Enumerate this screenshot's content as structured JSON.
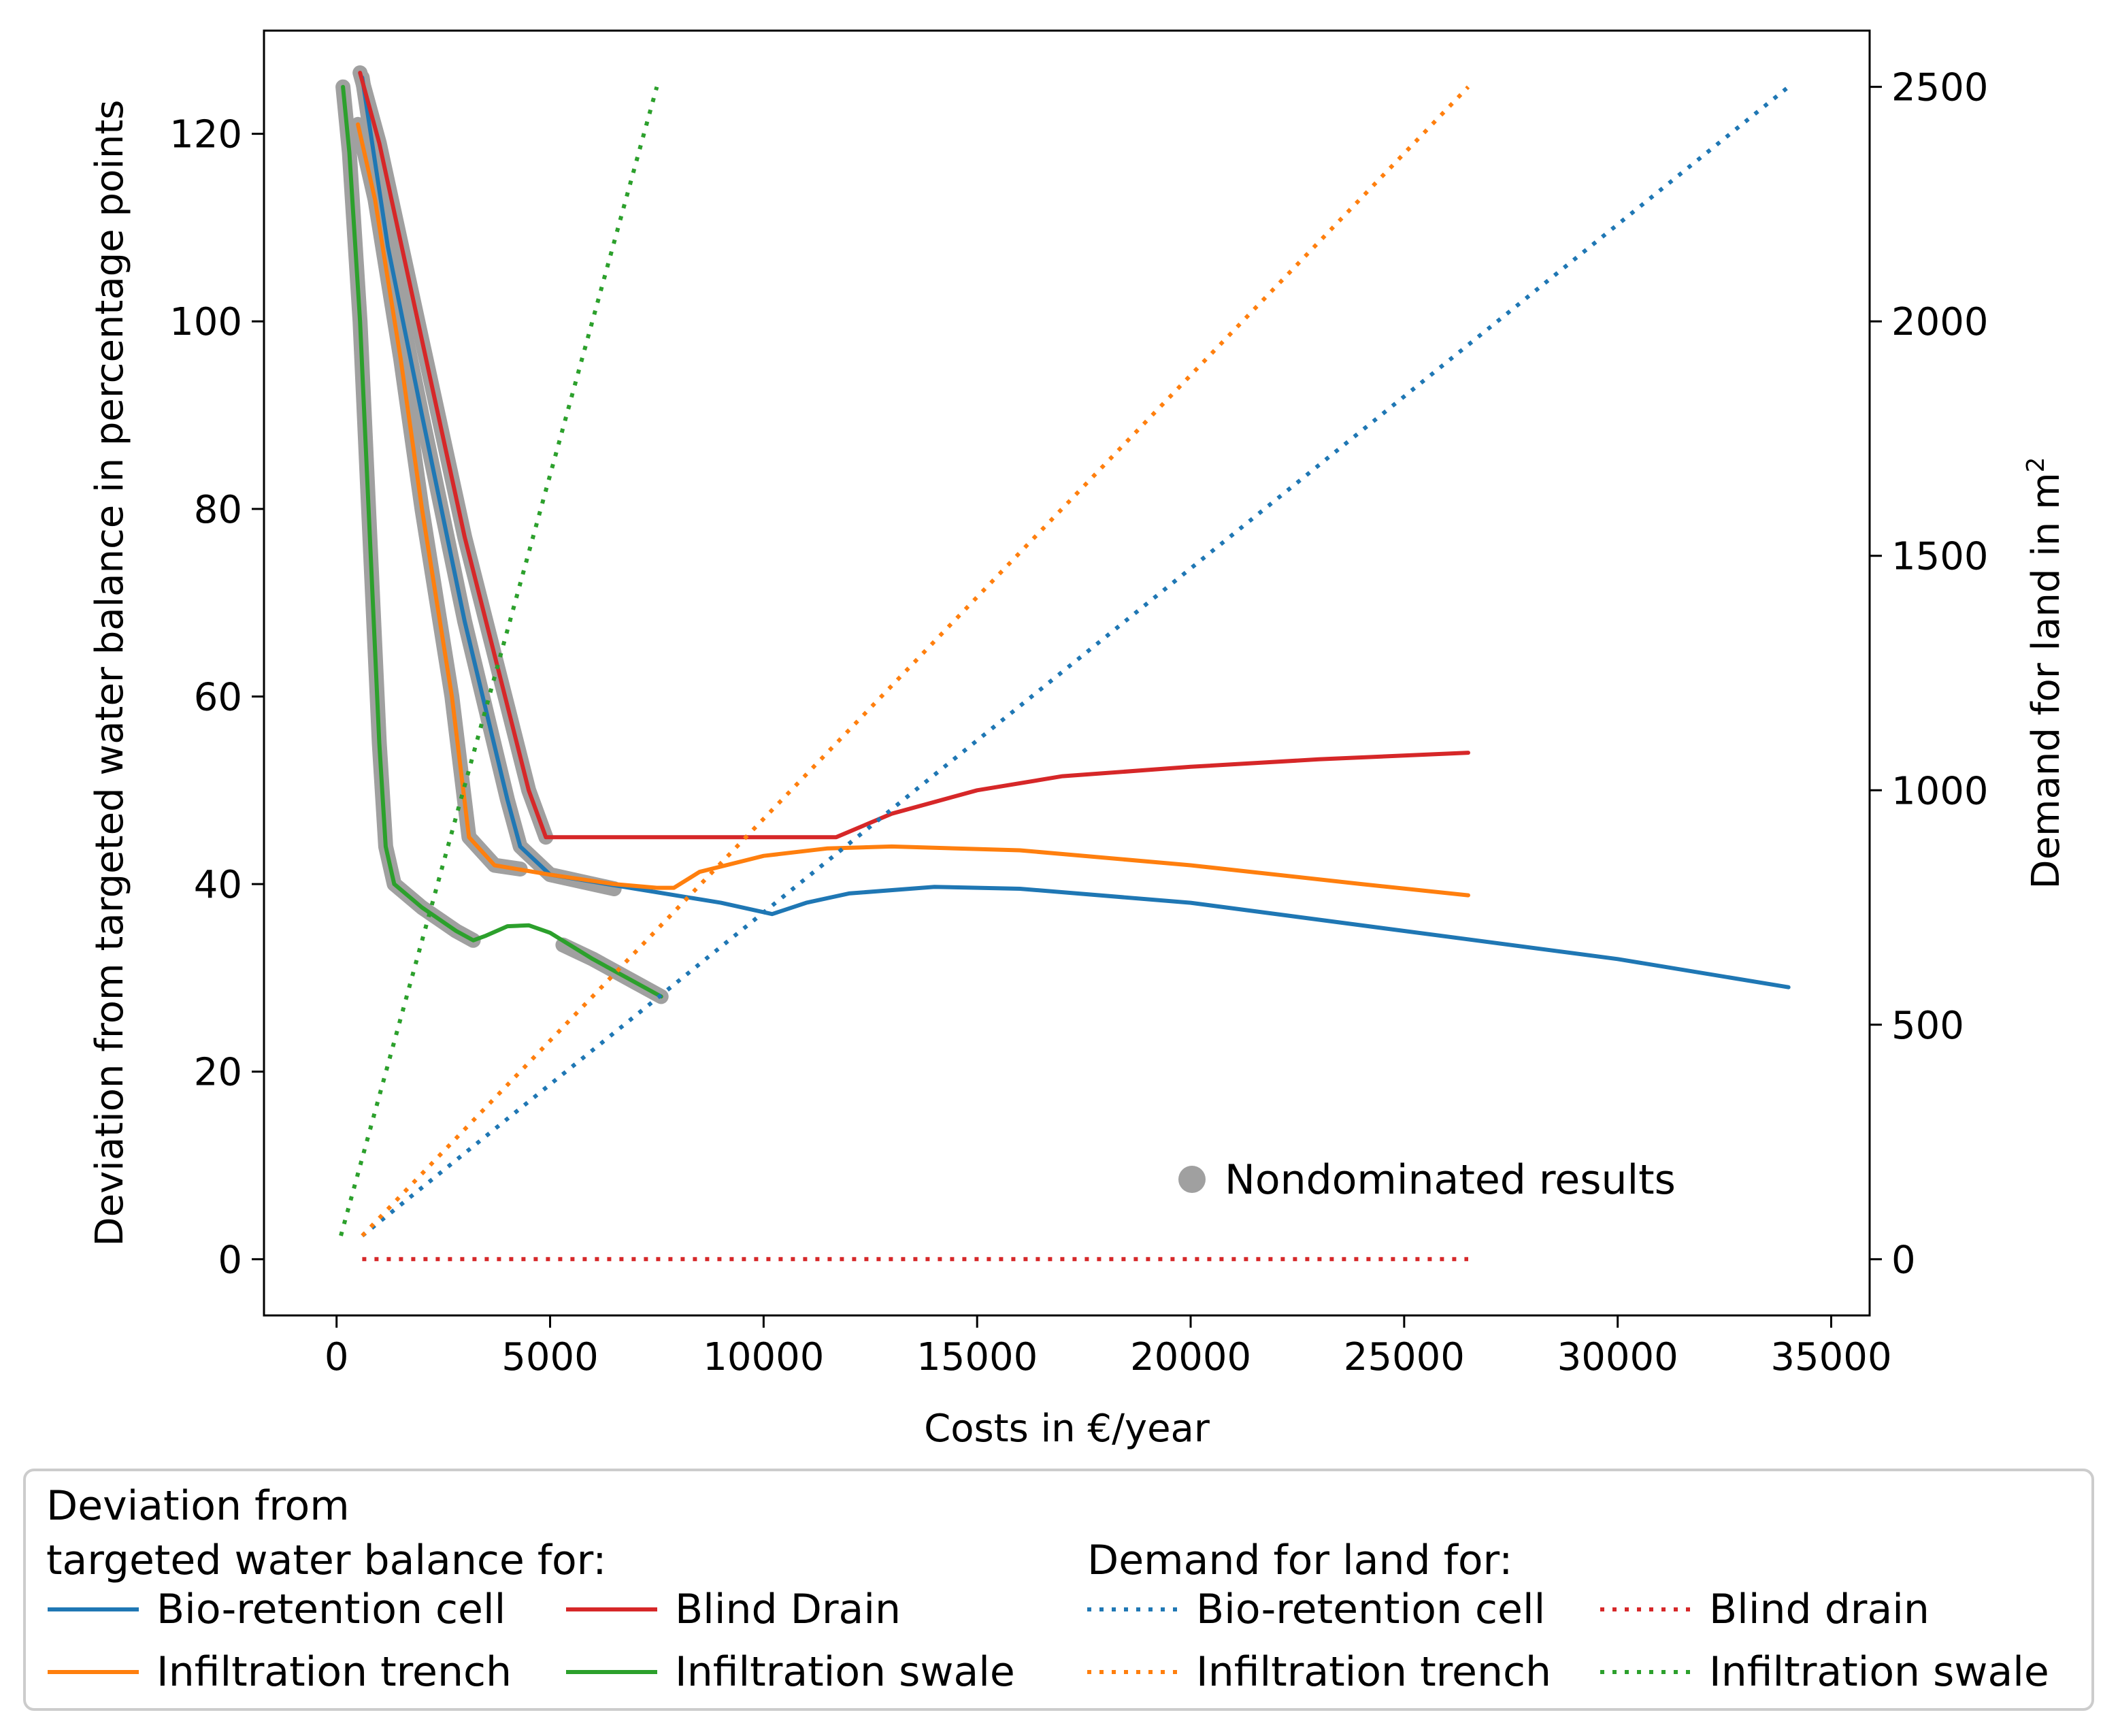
{
  "colors": {
    "bio_retention": "#1f77b4",
    "infiltration_trench": "#ff7f0e",
    "blind_drain": "#d62728",
    "infiltration_swale": "#2ca02c",
    "nondominated": "#a0a0a0"
  },
  "chart_data": {
    "type": "line",
    "xlabel": "Costs in €/year",
    "ylabel_left": "Deviation from targeted water balance in percentage points",
    "ylabel_right": "Demand for land in m",
    "ylabel_right_sup": "2",
    "xlim": [
      -1700,
      35900
    ],
    "ylim_left": [
      -6,
      131
    ],
    "ylim_right": [
      -120,
      2620
    ],
    "x_ticks": [
      0,
      5000,
      10000,
      15000,
      20000,
      25000,
      30000,
      35000
    ],
    "x_tick_labels": [
      "0",
      "5000",
      "10000",
      "15000",
      "20000",
      "25000",
      "30000",
      "35000"
    ],
    "y_left_ticks": [
      0,
      20,
      40,
      60,
      80,
      100,
      120
    ],
    "y_left_tick_labels": [
      "0",
      "20",
      "40",
      "60",
      "80",
      "100",
      "120"
    ],
    "y_right_ticks": [
      0,
      500,
      1000,
      1500,
      2000,
      2500
    ],
    "y_right_tick_labels": [
      "0",
      "500",
      "1000",
      "1500",
      "2000",
      "2500"
    ],
    "nondominated_label": "Nondominated results",
    "series": [
      {
        "name": "Bio-retention cell",
        "axis": "left",
        "style": "solid",
        "color_key": "bio_retention",
        "points": [
          [
            600,
            126
          ],
          [
            1200,
            108
          ],
          [
            2000,
            90
          ],
          [
            3000,
            68
          ],
          [
            4000,
            49
          ],
          [
            4300,
            44
          ],
          [
            5000,
            41
          ],
          [
            7000,
            39.5
          ],
          [
            9000,
            38
          ],
          [
            10000,
            37
          ],
          [
            10200,
            36.8
          ],
          [
            11000,
            38
          ],
          [
            12000,
            39
          ],
          [
            14000,
            39.7
          ],
          [
            16000,
            39.5
          ],
          [
            20000,
            38
          ],
          [
            25000,
            35
          ],
          [
            30000,
            32
          ],
          [
            34000,
            29
          ]
        ]
      },
      {
        "name": "Blind Drain",
        "axis": "left",
        "style": "solid",
        "color_key": "blind_drain",
        "points": [
          [
            550,
            126.5
          ],
          [
            1000,
            119
          ],
          [
            2000,
            98
          ],
          [
            3000,
            77
          ],
          [
            4000,
            59
          ],
          [
            4500,
            50
          ],
          [
            4900,
            45
          ],
          [
            6000,
            45
          ],
          [
            8000,
            45
          ],
          [
            10000,
            45
          ],
          [
            11700,
            45
          ],
          [
            13000,
            47.5
          ],
          [
            15000,
            50
          ],
          [
            17000,
            51.5
          ],
          [
            20000,
            52.5
          ],
          [
            23000,
            53.3
          ],
          [
            26500,
            54
          ]
        ]
      },
      {
        "name": "Infiltration trench",
        "axis": "left",
        "style": "solid",
        "color_key": "infiltration_trench",
        "points": [
          [
            500,
            121
          ],
          [
            900,
            113
          ],
          [
            1500,
            96
          ],
          [
            2000,
            80
          ],
          [
            2700,
            60
          ],
          [
            3100,
            45
          ],
          [
            3700,
            42
          ],
          [
            5000,
            41
          ],
          [
            6500,
            40
          ],
          [
            7500,
            39.6
          ],
          [
            7900,
            39.6
          ],
          [
            8500,
            41.3
          ],
          [
            10000,
            43
          ],
          [
            11500,
            43.8
          ],
          [
            13000,
            44
          ],
          [
            16000,
            43.6
          ],
          [
            20000,
            42
          ],
          [
            24000,
            40
          ],
          [
            26500,
            38.8
          ]
        ]
      },
      {
        "name": "Infiltration swale",
        "axis": "left",
        "style": "solid",
        "color_key": "infiltration_swale",
        "points": [
          [
            150,
            125
          ],
          [
            300,
            118
          ],
          [
            550,
            100
          ],
          [
            800,
            75
          ],
          [
            1000,
            55
          ],
          [
            1150,
            44
          ],
          [
            1350,
            40
          ],
          [
            2000,
            37.5
          ],
          [
            2800,
            35
          ],
          [
            3200,
            34
          ],
          [
            3500,
            34.5
          ],
          [
            4000,
            35.5
          ],
          [
            4500,
            35.6
          ],
          [
            5000,
            34.8
          ],
          [
            6000,
            32
          ],
          [
            7000,
            29.5
          ],
          [
            7600,
            28
          ]
        ]
      },
      {
        "name": "Nondominated bio-retention",
        "axis": "left",
        "style": "nondominated",
        "color_key": "nondominated",
        "points": [
          [
            600,
            126
          ],
          [
            1200,
            108
          ],
          [
            2000,
            90
          ],
          [
            3000,
            68
          ],
          [
            4000,
            49
          ],
          [
            4300,
            44
          ],
          [
            5000,
            41
          ],
          [
            6500,
            39.5
          ]
        ]
      },
      {
        "name": "Nondominated blind drain",
        "axis": "left",
        "style": "nondominated",
        "color_key": "nondominated",
        "points": [
          [
            550,
            126.5
          ],
          [
            1000,
            119
          ],
          [
            2000,
            98
          ],
          [
            3000,
            77
          ],
          [
            4000,
            59
          ],
          [
            4500,
            50
          ],
          [
            4900,
            45
          ]
        ]
      },
      {
        "name": "Nondominated trench",
        "axis": "left",
        "style": "nondominated",
        "color_key": "nondominated",
        "points": [
          [
            500,
            121
          ],
          [
            900,
            113
          ],
          [
            1500,
            96
          ],
          [
            2000,
            80
          ],
          [
            2700,
            60
          ],
          [
            3100,
            45
          ],
          [
            3700,
            42
          ],
          [
            4300,
            41.6
          ]
        ]
      },
      {
        "name": "Nondominated swale 1",
        "axis": "left",
        "style": "nondominated",
        "color_key": "nondominated",
        "points": [
          [
            150,
            125
          ],
          [
            300,
            118
          ],
          [
            550,
            100
          ],
          [
            800,
            75
          ],
          [
            1000,
            55
          ],
          [
            1150,
            44
          ],
          [
            1350,
            40
          ],
          [
            2000,
            37.5
          ],
          [
            2800,
            35
          ],
          [
            3200,
            34
          ]
        ]
      },
      {
        "name": "Nondominated swale 2",
        "axis": "left",
        "style": "nondominated",
        "color_key": "nondominated",
        "points": [
          [
            5300,
            33.5
          ],
          [
            6000,
            32
          ],
          [
            7000,
            29.5
          ],
          [
            7600,
            28
          ]
        ]
      },
      {
        "name": "Bio-retention cell",
        "axis": "right",
        "style": "dotted",
        "color_key": "bio_retention",
        "points": [
          [
            600,
            50
          ],
          [
            34000,
            2500
          ]
        ]
      },
      {
        "name": "Infiltration trench",
        "axis": "right",
        "style": "dotted",
        "color_key": "infiltration_trench",
        "points": [
          [
            600,
            50
          ],
          [
            26500,
            2500
          ]
        ]
      },
      {
        "name": "Blind drain",
        "axis": "right",
        "style": "dotted",
        "color_key": "blind_drain",
        "points": [
          [
            600,
            0
          ],
          [
            26500,
            0
          ]
        ]
      },
      {
        "name": "Infiltration swale",
        "axis": "right",
        "style": "dotted",
        "color_key": "infiltration_swale",
        "points": [
          [
            100,
            50
          ],
          [
            7500,
            2500
          ]
        ]
      }
    ]
  },
  "legend": {
    "title_left_line1": "Deviation from",
    "title_left_line2": "targeted water balance for:",
    "title_right": "Demand for land for:",
    "items": [
      {
        "label": "Bio-retention cell",
        "color_key": "bio_retention",
        "style": "solid"
      },
      {
        "label": "Blind Drain",
        "color_key": "blind_drain",
        "style": "solid"
      },
      {
        "label": "Infiltration trench",
        "color_key": "infiltration_trench",
        "style": "solid"
      },
      {
        "label": "Infiltration swale",
        "color_key": "infiltration_swale",
        "style": "solid"
      },
      {
        "label": "Bio-retention cell",
        "color_key": "bio_retention",
        "style": "dotted"
      },
      {
        "label": "Blind drain",
        "color_key": "blind_drain",
        "style": "dotted"
      },
      {
        "label": "Infiltration trench",
        "color_key": "infiltration_trench",
        "style": "dotted"
      },
      {
        "label": "Infiltration swale",
        "color_key": "infiltration_swale",
        "style": "dotted"
      }
    ]
  }
}
